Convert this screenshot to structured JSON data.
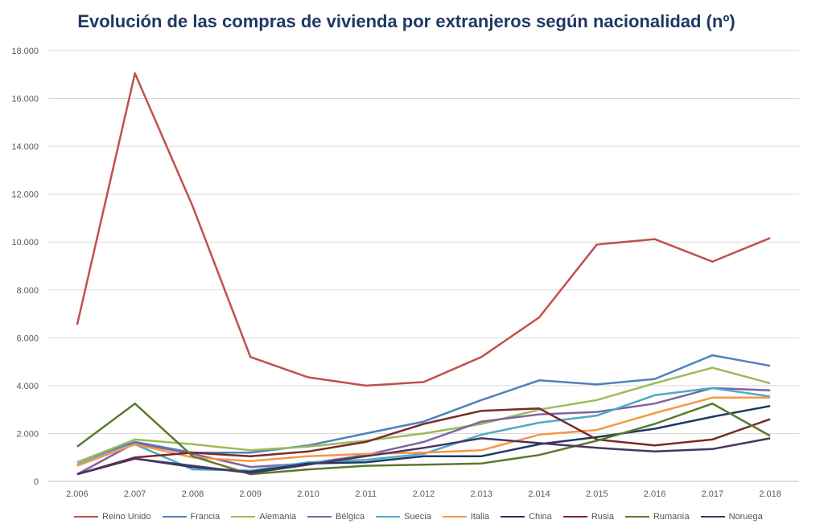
{
  "chart_data": {
    "type": "line",
    "title": "Evolución de las compras de vivienda por extranjeros según nacionalidad (nº)",
    "xlabel": "",
    "ylabel": "",
    "ylim": [
      0,
      18000
    ],
    "yticks": [
      "0",
      "2.000",
      "4.000",
      "6.000",
      "8.000",
      "10.000",
      "12.000",
      "14.000",
      "16.000",
      "18.000"
    ],
    "ytick_values": [
      0,
      2000,
      4000,
      6000,
      8000,
      10000,
      12000,
      14000,
      16000,
      18000
    ],
    "categories": [
      "2.006",
      "2.007",
      "2.008",
      "2.009",
      "2.010",
      "2.011",
      "2.012",
      "2.013",
      "2.014",
      "2.015",
      "2.016",
      "2.017",
      "2.018"
    ],
    "grid": true,
    "legend_position": "bottom",
    "series": [
      {
        "name": "Reino Unido",
        "color": "#c0504d",
        "values": [
          6550,
          17050,
          11500,
          5200,
          4350,
          4000,
          4150,
          5200,
          6850,
          9900,
          10120,
          9180,
          10170
        ]
      },
      {
        "name": "Francia",
        "color": "#4f81bd",
        "values": [
          800,
          1650,
          1200,
          1200,
          1500,
          2000,
          2500,
          3400,
          4220,
          4050,
          4280,
          5270,
          4830
        ]
      },
      {
        "name": "Alemania",
        "color": "#9bbb59",
        "values": [
          800,
          1750,
          1550,
          1300,
          1450,
          1700,
          2000,
          2400,
          3000,
          3400,
          4100,
          4750,
          4100
        ]
      },
      {
        "name": "Bélgica",
        "color": "#8064a2",
        "values": [
          300,
          1600,
          1150,
          600,
          750,
          1100,
          1650,
          2500,
          2800,
          2900,
          3250,
          3900,
          3800
        ]
      },
      {
        "name": "Suecia",
        "color": "#4bacc6",
        "values": [
          700,
          1550,
          500,
          450,
          800,
          900,
          1150,
          1950,
          2450,
          2750,
          3600,
          3900,
          3550
        ]
      },
      {
        "name": "Italia",
        "color": "#f79646",
        "values": [
          650,
          1550,
          1000,
          850,
          1050,
          1150,
          1200,
          1300,
          1950,
          2150,
          2850,
          3500,
          3500
        ]
      },
      {
        "name": "China",
        "color": "#1f3864",
        "values": [
          300,
          950,
          600,
          400,
          750,
          800,
          1050,
          1050,
          1550,
          1850,
          2200,
          2700,
          3150
        ]
      },
      {
        "name": "Rusia",
        "color": "#7b2a2a",
        "values": [
          300,
          1000,
          1200,
          1050,
          1250,
          1650,
          2400,
          2950,
          3050,
          1750,
          1500,
          1750,
          2600
        ]
      },
      {
        "name": "Rumanía",
        "color": "#5a7a2e",
        "values": [
          1450,
          3250,
          1050,
          300,
          500,
          650,
          700,
          750,
          1100,
          1700,
          2400,
          3250,
          1900
        ]
      },
      {
        "name": "Noruega",
        "color": "#4a3463",
        "values": [
          300,
          950,
          650,
          350,
          700,
          1050,
          1400,
          1800,
          1600,
          1400,
          1250,
          1350,
          1800
        ]
      }
    ]
  }
}
